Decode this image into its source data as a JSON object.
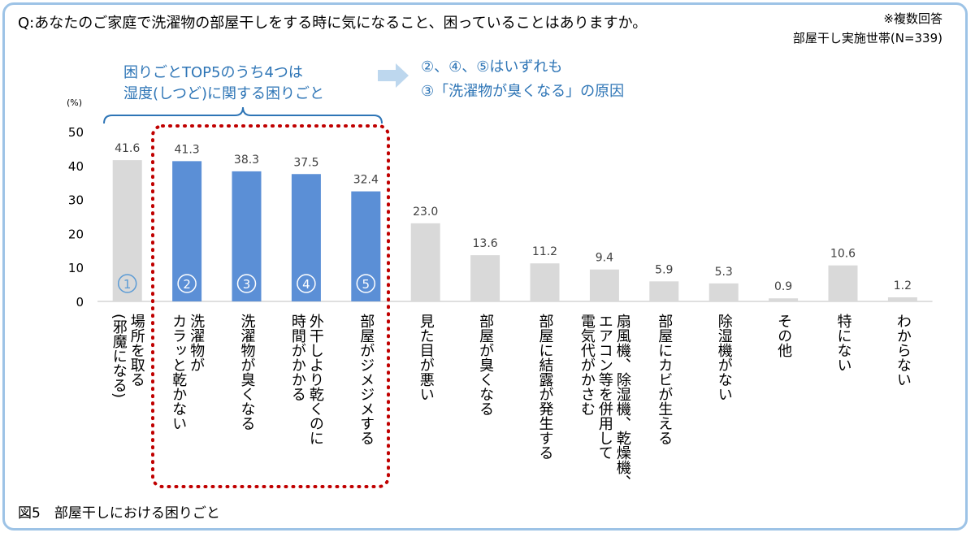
{
  "header": {
    "question": "Q:あなたのご家庭で洗濯物の部屋干しをする時に気になること、困っていることはありますか。",
    "note_multi": "※複数回答",
    "note_base": "部屋干し実施世帯(N=339)"
  },
  "callout": {
    "left_line1": "困りごとTOP5のうち4つは",
    "left_line2": "湿度(しつど)に関する困りごと",
    "right_line1": "②、④、⑤はいずれも",
    "right_line2": "③「洗濯物が臭くなる」の原因"
  },
  "caption": "図5　部屋干しにおける困りごと",
  "colors": {
    "frame": "#9dc3e6",
    "highlight_bar": "#5b8fd6",
    "normal_bar": "#d9d9d9",
    "callout_text": "#2e75b6",
    "dotted_box": "#c00000"
  },
  "chart_data": {
    "type": "bar",
    "unit_label": "(%)",
    "ylim": [
      0,
      50
    ],
    "yticks": [
      0,
      10,
      20,
      30,
      40,
      50
    ],
    "grid": false,
    "categories": [
      "場所を取る(邪魔になる)",
      "洗濯物がカラッと乾かない",
      "洗濯物が臭くなる",
      "外干しより乾くのに時間がかかる",
      "部屋がジメジメする",
      "見た目が悪い",
      "部屋が臭くなる",
      "部屋に結露が発生する",
      "扇風機、除湿機、乾燥機、エアコン等を併用して電気代がかさむ",
      "部屋にカビが生える",
      "除湿機がない",
      "その他",
      "特にない",
      "わからない"
    ],
    "category_lines": [
      [
        "場所を取る",
        "(邪魔になる)"
      ],
      [
        "洗濯物が",
        "カラッと乾かない"
      ],
      [
        "洗濯物が臭くなる"
      ],
      [
        "外干しより乾くのに",
        "時間がかかる"
      ],
      [
        "部屋がジメジメする"
      ],
      [
        "見た目が悪い"
      ],
      [
        "部屋が臭くなる"
      ],
      [
        "部屋に結露が発生する"
      ],
      [
        "扇風機、除湿機、乾燥機、",
        "エアコン等を併用して",
        "電気代がかさむ"
      ],
      [
        "部屋にカビが生える"
      ],
      [
        "除湿機がない"
      ],
      [
        "その他"
      ],
      [
        "特にない"
      ],
      [
        "わからない"
      ]
    ],
    "values": [
      41.6,
      41.3,
      38.3,
      37.5,
      32.4,
      23.0,
      13.6,
      11.2,
      9.4,
      5.9,
      5.3,
      0.9,
      10.6,
      1.2
    ],
    "value_labels": [
      "41.6",
      "41.3",
      "38.3",
      "37.5",
      "32.4",
      "23.0",
      "13.6",
      "11.2",
      "9.4",
      "5.9",
      "5.3",
      "0.9",
      "10.6",
      "1.2"
    ],
    "rank_badges": [
      "1",
      "2",
      "3",
      "4",
      "5",
      "",
      "",
      "",
      "",
      "",
      "",
      "",
      "",
      ""
    ],
    "highlighted": [
      false,
      true,
      true,
      true,
      true,
      false,
      false,
      false,
      false,
      false,
      false,
      false,
      false,
      false
    ]
  }
}
